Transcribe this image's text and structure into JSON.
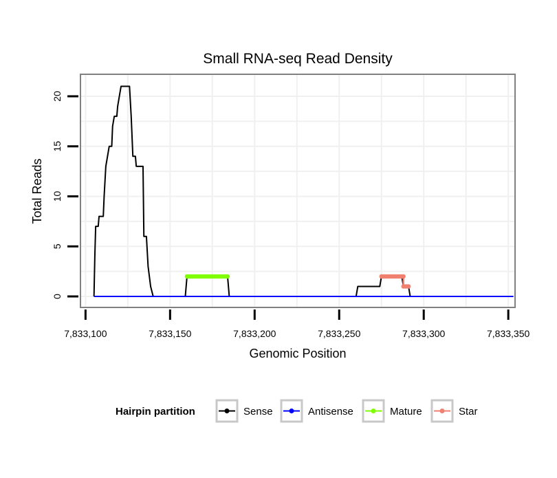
{
  "chart_data": {
    "type": "line",
    "title": "Small RNA-seq Read Density",
    "xlabel": "Genomic Position",
    "ylabel": "Total Reads",
    "xlim": [
      7833097,
      7833354
    ],
    "ylim": [
      -1.1,
      22.2
    ],
    "x_ticks": [
      7833100,
      7833150,
      7833200,
      7833250,
      7833300,
      7833350
    ],
    "x_tick_labels": [
      "7,833,100",
      "7,833,150",
      "7,833,200",
      "7,833,250",
      "7,833,300",
      "7,833,350"
    ],
    "y_ticks": [
      0,
      5,
      10,
      15,
      20
    ],
    "y_tick_labels": [
      "0",
      "5",
      "10",
      "15",
      "20"
    ],
    "grid": true,
    "legend": {
      "title": "Hairpin partition",
      "position": "bottom"
    },
    "series": [
      {
        "name": "Sense",
        "color": "#000000",
        "points": [
          [
            7833105,
            0
          ],
          [
            7833105.5,
            4
          ],
          [
            7833106,
            7
          ],
          [
            7833107.5,
            7
          ],
          [
            7833108,
            8
          ],
          [
            7833110.5,
            8
          ],
          [
            7833111,
            10
          ],
          [
            7833112,
            13
          ],
          [
            7833113,
            14
          ],
          [
            7833114,
            15
          ],
          [
            7833115.5,
            15
          ],
          [
            7833116,
            17
          ],
          [
            7833117,
            18
          ],
          [
            7833118.5,
            18
          ],
          [
            7833119,
            19
          ],
          [
            7833120,
            20
          ],
          [
            7833121,
            21
          ],
          [
            7833126,
            21
          ],
          [
            7833127,
            18
          ],
          [
            7833128,
            14
          ],
          [
            7833129.5,
            14
          ],
          [
            7833130,
            13
          ],
          [
            7833134,
            13
          ],
          [
            7833134.5,
            6
          ],
          [
            7833136,
            6
          ],
          [
            7833137,
            3
          ],
          [
            7833138.5,
            1
          ],
          [
            7833140,
            0
          ],
          [
            7833159,
            0
          ],
          [
            7833160,
            2
          ],
          [
            7833184,
            2
          ],
          [
            7833185,
            0
          ],
          [
            7833260,
            0
          ],
          [
            7833261,
            1
          ],
          [
            7833274,
            1
          ],
          [
            7833275,
            2
          ],
          [
            7833287,
            2
          ],
          [
            7833288,
            1
          ],
          [
            7833291,
            1
          ],
          [
            7833292,
            0
          ],
          [
            7833353,
            0
          ]
        ]
      },
      {
        "name": "Antisense",
        "color": "#0000ff",
        "points": [
          [
            7833105,
            0
          ],
          [
            7833353,
            0
          ]
        ]
      },
      {
        "name": "Mature",
        "color": "#7fff00",
        "points": [
          [
            7833160,
            2
          ],
          [
            7833184,
            2
          ]
        ]
      },
      {
        "name": "Star",
        "color": "#f08070",
        "points": [
          [
            7833275,
            2
          ],
          [
            7833288,
            2
          ],
          [
            7833288,
            1
          ],
          [
            7833291,
            1
          ]
        ]
      }
    ]
  }
}
